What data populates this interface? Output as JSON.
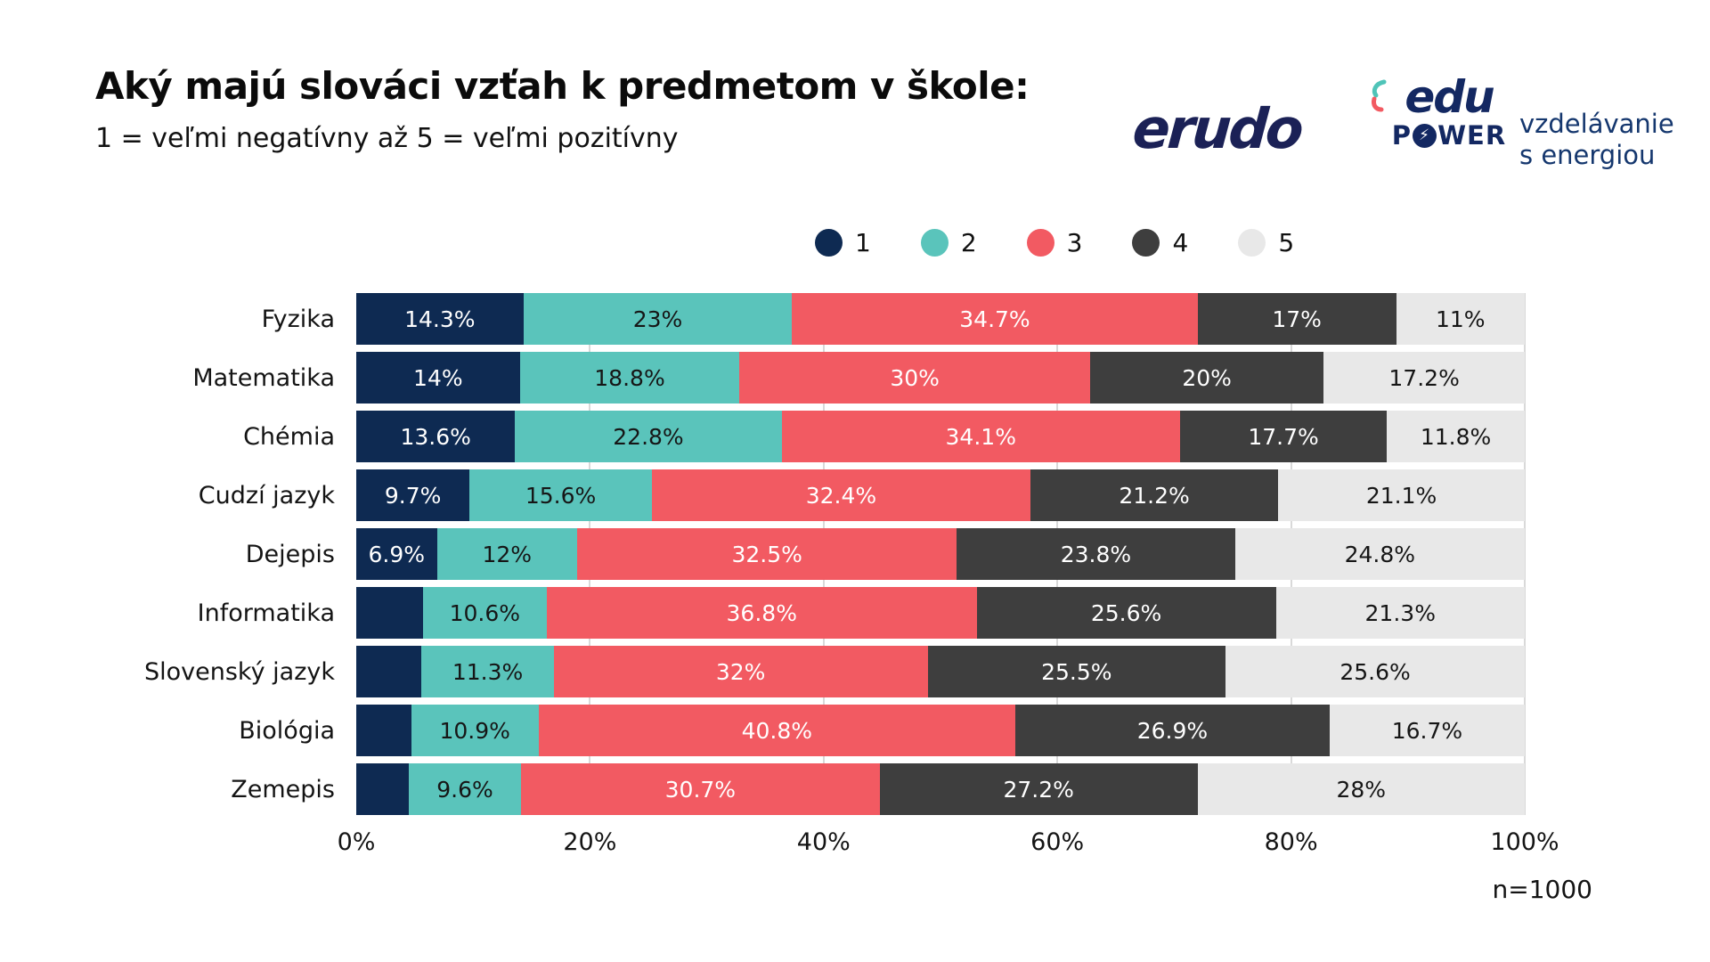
{
  "header": {
    "title": "Aký majú slováci vzťah k predmetom v škole:",
    "subtitle": "1 = veľmi negatívny až 5 = veľmi pozitívny"
  },
  "logos": {
    "erudo_wordmark": "erudo",
    "edupower_edu": "edu",
    "edupower_power_p": "P",
    "edupower_power_bolt": "⚡",
    "edupower_power_wer": "WER",
    "tagline_line1": "vzdelávanie",
    "tagline_line2": "s energiou",
    "navy": "#132862",
    "teal_accent": "#4fc4b8",
    "red_accent": "#f25a62"
  },
  "legend": {
    "items": [
      {
        "label": "1",
        "color": "#0e2a52"
      },
      {
        "label": "2",
        "color": "#5ac4bb"
      },
      {
        "label": "3",
        "color": "#f25a62"
      },
      {
        "label": "4",
        "color": "#3e3e3e"
      },
      {
        "label": "5",
        "color": "#e8e8e8"
      }
    ]
  },
  "chart_data": {
    "type": "bar",
    "orientation": "horizontal-stacked",
    "title": "Aký majú slováci vzťah k predmetom v škole:",
    "scale_note": "1 = veľmi negatívny až 5 = veľmi pozitívny",
    "legend_position": "top",
    "grid": "vertical-light",
    "xlim": [
      0,
      100
    ],
    "x_ticks": [
      "0%",
      "20%",
      "40%",
      "60%",
      "80%",
      "100%"
    ],
    "categories": [
      "Fyzika",
      "Matematika",
      "Chémia",
      "Cudzí jazyk",
      "Dejepis",
      "Informatika",
      "Slovenský jazyk",
      "Biológia",
      "Zemepis"
    ],
    "series": [
      {
        "name": "1",
        "color": "#0e2a52",
        "text_color": "#ffffff",
        "values": [
          14.3,
          14,
          13.6,
          9.7,
          6.9,
          5.7,
          5.6,
          4.7,
          4.5
        ],
        "labels": [
          "14.3%",
          "14%",
          "13.6%",
          "9.7%",
          "6.9%",
          "",
          "",
          "",
          ""
        ]
      },
      {
        "name": "2",
        "color": "#5ac4bb",
        "text_color": "#161616",
        "values": [
          23,
          18.8,
          22.8,
          15.6,
          12,
          10.6,
          11.3,
          10.9,
          9.6
        ],
        "labels": [
          "23%",
          "18.8%",
          "22.8%",
          "15.6%",
          "12%",
          "10.6%",
          "11.3%",
          "10.9%",
          "9.6%"
        ]
      },
      {
        "name": "3",
        "color": "#f25a62",
        "text_color": "#ffffff",
        "values": [
          34.7,
          30,
          34.1,
          32.4,
          32.5,
          36.8,
          32,
          40.8,
          30.7
        ],
        "labels": [
          "34.7%",
          "30%",
          "34.1%",
          "32.4%",
          "32.5%",
          "36.8%",
          "32%",
          "40.8%",
          "30.7%"
        ]
      },
      {
        "name": "4",
        "color": "#3e3e3e",
        "text_color": "#ffffff",
        "values": [
          17,
          20,
          17.7,
          21.2,
          23.8,
          25.6,
          25.5,
          26.9,
          27.2
        ],
        "labels": [
          "17%",
          "20%",
          "17.7%",
          "21.2%",
          "23.8%",
          "25.6%",
          "25.5%",
          "26.9%",
          "27.2%"
        ]
      },
      {
        "name": "5",
        "color": "#e8e8e8",
        "text_color": "#161616",
        "values": [
          11,
          17.2,
          11.8,
          21.1,
          24.8,
          21.3,
          25.6,
          16.7,
          28
        ],
        "labels": [
          "11%",
          "17.2%",
          "11.8%",
          "21.1%",
          "24.8%",
          "21.3%",
          "25.6%",
          "16.7%",
          "28%"
        ]
      }
    ],
    "sample_note": "n=1000"
  }
}
